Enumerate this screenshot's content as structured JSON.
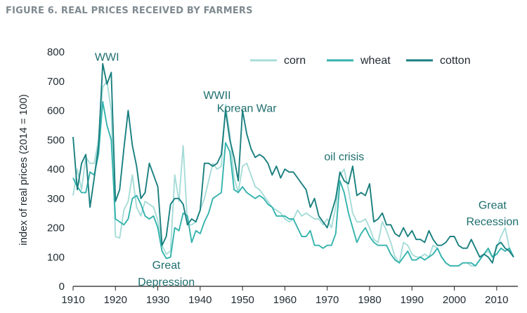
{
  "figure": {
    "title": "FIGURE 6. REAL PRICES RECEIVED BY FARMERS"
  },
  "chart_data": {
    "type": "line",
    "title": "",
    "xlabel": "",
    "ylabel": "index of real prices (2014 = 100)",
    "xlim": [
      1910,
      2015
    ],
    "ylim": [
      0,
      800
    ],
    "x_ticks": [
      1910,
      1920,
      1930,
      1940,
      1950,
      1960,
      1970,
      1980,
      1990,
      2000,
      2010
    ],
    "y_ticks": [
      0,
      100,
      200,
      300,
      400,
      500,
      600,
      700,
      800
    ],
    "grid": false,
    "legend_position": "top-right",
    "series": [
      {
        "name": "corn",
        "color": "#a6dcd8",
        "x": [
          1910,
          1911,
          1912,
          1913,
          1914,
          1915,
          1916,
          1917,
          1918,
          1919,
          1920,
          1921,
          1922,
          1923,
          1924,
          1925,
          1926,
          1927,
          1928,
          1929,
          1930,
          1931,
          1932,
          1933,
          1934,
          1935,
          1936,
          1937,
          1938,
          1939,
          1940,
          1941,
          1942,
          1943,
          1944,
          1945,
          1946,
          1947,
          1948,
          1949,
          1950,
          1951,
          1952,
          1953,
          1954,
          1955,
          1956,
          1957,
          1958,
          1959,
          1960,
          1961,
          1962,
          1963,
          1964,
          1965,
          1966,
          1967,
          1968,
          1969,
          1970,
          1971,
          1972,
          1973,
          1974,
          1975,
          1976,
          1977,
          1978,
          1979,
          1980,
          1981,
          1982,
          1983,
          1984,
          1985,
          1986,
          1987,
          1988,
          1989,
          1990,
          1991,
          1992,
          1993,
          1994,
          1995,
          1996,
          1997,
          1998,
          1999,
          2000,
          2001,
          2002,
          2003,
          2004,
          2005,
          2006,
          2007,
          2008,
          2009,
          2010,
          2011,
          2012,
          2013,
          2014
        ],
        "values": [
          310,
          400,
          330,
          440,
          420,
          420,
          500,
          680,
          700,
          600,
          170,
          165,
          260,
          290,
          380,
          270,
          240,
          290,
          280,
          270,
          225,
          140,
          110,
          120,
          380,
          290,
          480,
          210,
          210,
          220,
          260,
          300,
          360,
          420,
          400,
          410,
          620,
          520,
          370,
          320,
          410,
          420,
          380,
          340,
          330,
          310,
          290,
          270,
          260,
          250,
          230,
          220,
          230,
          260,
          240,
          250,
          240,
          230,
          230,
          210,
          230,
          200,
          270,
          380,
          400,
          330,
          250,
          220,
          220,
          230,
          200,
          160,
          150,
          220,
          190,
          150,
          100,
          80,
          150,
          140,
          110,
          100,
          100,
          110,
          100,
          140,
          130,
          100,
          80,
          70,
          70,
          70,
          80,
          80,
          70,
          70,
          90,
          110,
          120,
          100,
          130,
          170,
          200,
          130,
          100
        ]
      },
      {
        "name": "wheat",
        "color": "#35b3ad",
        "x": [
          1910,
          1911,
          1912,
          1913,
          1914,
          1915,
          1916,
          1917,
          1918,
          1919,
          1920,
          1921,
          1922,
          1923,
          1924,
          1925,
          1926,
          1927,
          1928,
          1929,
          1930,
          1931,
          1932,
          1933,
          1934,
          1935,
          1936,
          1937,
          1938,
          1939,
          1940,
          1941,
          1942,
          1943,
          1944,
          1945,
          1946,
          1947,
          1948,
          1949,
          1950,
          1951,
          1952,
          1953,
          1954,
          1955,
          1956,
          1957,
          1958,
          1959,
          1960,
          1961,
          1962,
          1963,
          1964,
          1965,
          1966,
          1967,
          1968,
          1969,
          1970,
          1971,
          1972,
          1973,
          1974,
          1975,
          1976,
          1977,
          1978,
          1979,
          1980,
          1981,
          1982,
          1983,
          1984,
          1985,
          1986,
          1987,
          1988,
          1989,
          1990,
          1991,
          1992,
          1993,
          1994,
          1995,
          1996,
          1997,
          1998,
          1999,
          2000,
          2001,
          2002,
          2003,
          2004,
          2005,
          2006,
          2007,
          2008,
          2009,
          2010,
          2011,
          2012,
          2013,
          2014
        ],
        "values": [
          370,
          340,
          320,
          320,
          390,
          380,
          450,
          630,
          550,
          500,
          230,
          220,
          210,
          230,
          300,
          310,
          280,
          240,
          230,
          240,
          200,
          120,
          95,
          100,
          200,
          190,
          250,
          240,
          150,
          190,
          180,
          220,
          250,
          300,
          310,
          320,
          490,
          460,
          330,
          320,
          340,
          320,
          310,
          300,
          310,
          300,
          280,
          270,
          240,
          240,
          240,
          230,
          230,
          200,
          170,
          170,
          190,
          140,
          140,
          130,
          140,
          140,
          180,
          360,
          320,
          250,
          200,
          150,
          180,
          200,
          170,
          150,
          140,
          140,
          140,
          110,
          90,
          80,
          100,
          120,
          90,
          90,
          100,
          90,
          100,
          110,
          130,
          100,
          80,
          70,
          70,
          70,
          80,
          80,
          80,
          70,
          90,
          110,
          130,
          100,
          110,
          130,
          120,
          130,
          100
        ]
      },
      {
        "name": "cotton",
        "color": "#1a7f7f",
        "x": [
          1910,
          1911,
          1912,
          1913,
          1914,
          1915,
          1916,
          1917,
          1918,
          1919,
          1920,
          1921,
          1922,
          1923,
          1924,
          1925,
          1926,
          1927,
          1928,
          1929,
          1930,
          1931,
          1932,
          1933,
          1934,
          1935,
          1936,
          1937,
          1938,
          1939,
          1940,
          1941,
          1942,
          1943,
          1944,
          1945,
          1946,
          1947,
          1948,
          1949,
          1950,
          1951,
          1952,
          1953,
          1954,
          1955,
          1956,
          1957,
          1958,
          1959,
          1960,
          1961,
          1962,
          1963,
          1964,
          1965,
          1966,
          1967,
          1968,
          1969,
          1970,
          1971,
          1972,
          1973,
          1974,
          1975,
          1976,
          1977,
          1978,
          1979,
          1980,
          1981,
          1982,
          1983,
          1984,
          1985,
          1986,
          1987,
          1988,
          1989,
          1990,
          1991,
          1992,
          1993,
          1994,
          1995,
          1996,
          1997,
          1998,
          1999,
          2000,
          2001,
          2002,
          2003,
          2004,
          2005,
          2006,
          2007,
          2008,
          2009,
          2010,
          2011,
          2012,
          2013,
          2014
        ],
        "values": [
          510,
          330,
          420,
          450,
          270,
          370,
          480,
          760,
          690,
          730,
          290,
          330,
          470,
          600,
          480,
          410,
          300,
          320,
          420,
          380,
          340,
          140,
          170,
          280,
          300,
          300,
          280,
          210,
          230,
          220,
          260,
          420,
          420,
          410,
          420,
          450,
          600,
          500,
          440,
          360,
          600,
          520,
          470,
          440,
          450,
          440,
          420,
          380,
          410,
          370,
          400,
          390,
          390,
          370,
          350,
          330,
          270,
          300,
          240,
          220,
          200,
          250,
          300,
          390,
          360,
          350,
          410,
          310,
          320,
          310,
          350,
          220,
          230,
          250,
          210,
          210,
          180,
          170,
          200,
          170,
          190,
          160,
          160,
          150,
          190,
          160,
          140,
          140,
          150,
          170,
          170,
          140,
          130,
          130,
          160,
          130,
          100,
          110,
          100,
          80,
          140,
          150,
          130,
          120,
          100
        ]
      }
    ],
    "annotations": [
      {
        "text": "WWI",
        "x": 1918,
        "y": 770
      },
      {
        "text": "WWII",
        "x": 1944,
        "y": 640
      },
      {
        "text": "Korean War",
        "x": 1951,
        "y": 595
      },
      {
        "text": "oil crisis",
        "x": 1974,
        "y": 430
      },
      {
        "text": "Great",
        "x": 1932,
        "y": 60
      },
      {
        "text": "Depression",
        "x": 1932,
        "y": 2
      },
      {
        "text": "Great",
        "x": 2009,
        "y": 265
      },
      {
        "text": "Recession",
        "x": 2009,
        "y": 208
      }
    ]
  }
}
